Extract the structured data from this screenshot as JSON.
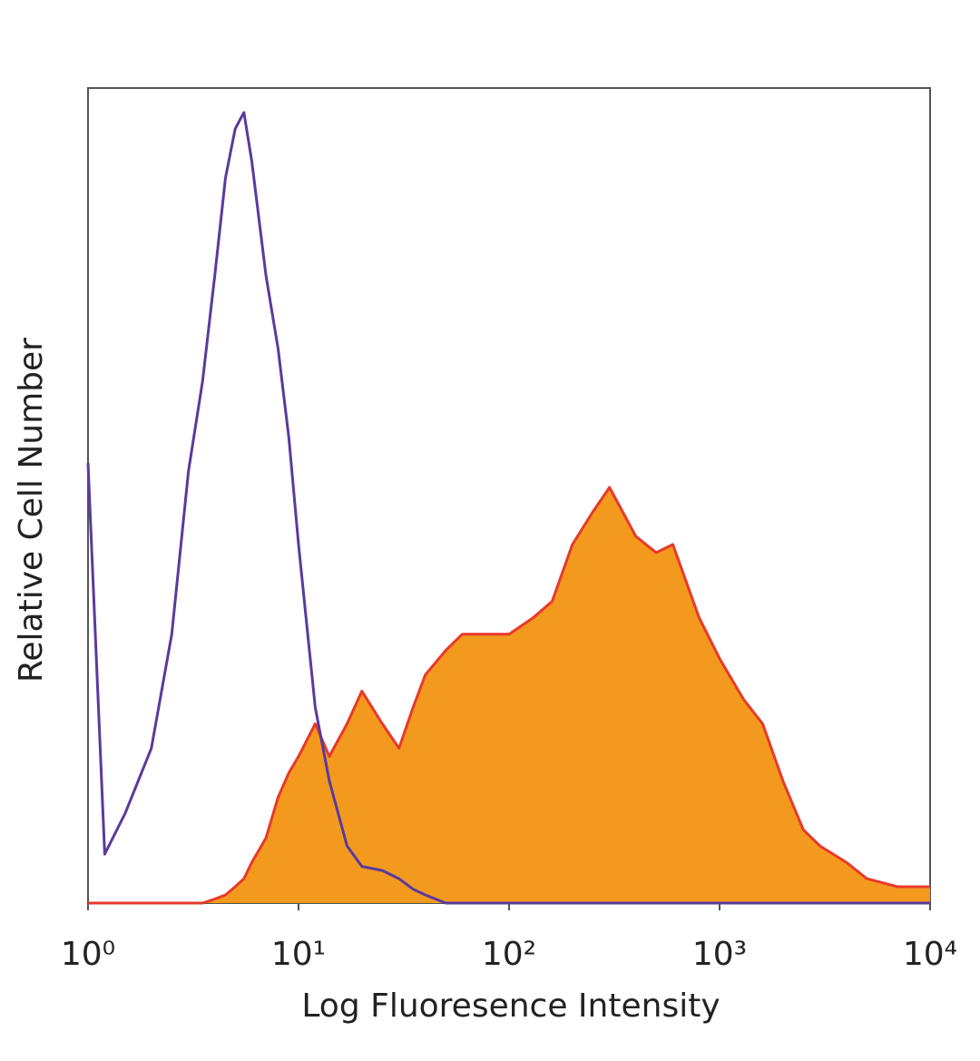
{
  "chart_data": {
    "type": "line",
    "xlabel": "Log Fluoresence Intensity",
    "ylabel": "Relative Cell Number",
    "xscale": "log",
    "xlim": [
      1,
      10000
    ],
    "ylim": [
      0,
      100
    ],
    "xticks": [
      {
        "value": 1,
        "label": "10⁰"
      },
      {
        "value": 10,
        "label": "10¹"
      },
      {
        "value": 100,
        "label": "10²"
      },
      {
        "value": 1000,
        "label": "10³"
      },
      {
        "value": 10000,
        "label": "10⁴"
      }
    ],
    "x": [
      1,
      1.2,
      1.5,
      2,
      2.5,
      3,
      3.5,
      4,
      4.5,
      5,
      5.5,
      6,
      7,
      8,
      9,
      10,
      12,
      14,
      17,
      20,
      25,
      30,
      35,
      40,
      50,
      60,
      80,
      100,
      130,
      160,
      200,
      250,
      300,
      400,
      500,
      600,
      800,
      1000,
      1300,
      1600,
      2000,
      2500,
      3000,
      4000,
      5000,
      7000,
      10000
    ],
    "series": [
      {
        "color": "#f39a1e",
        "line_color": "#e8392a",
        "fill": true,
        "values": [
          0,
          0,
          0,
          0,
          0,
          0,
          0,
          0.5,
          1,
          2,
          3,
          5,
          8,
          13,
          16,
          18,
          22,
          18,
          22,
          26,
          22,
          19,
          24,
          28,
          31,
          33,
          33,
          33,
          35,
          37,
          44,
          48,
          51,
          45,
          43,
          44,
          35,
          30,
          25,
          22,
          15,
          9,
          7,
          5,
          3,
          2,
          2
        ]
      },
      {
        "color": "#5a3a9e",
        "fill": false,
        "values": [
          54,
          6,
          11,
          19,
          33,
          53,
          64,
          77,
          89,
          95,
          97,
          91,
          77,
          68,
          57,
          44,
          24,
          15,
          7,
          4.5,
          4,
          3,
          1.7,
          1,
          0,
          0,
          0,
          0,
          0,
          0,
          0,
          0,
          0,
          0,
          0,
          0,
          0,
          0,
          0,
          0,
          0,
          0,
          0,
          0,
          0,
          0,
          0
        ]
      }
    ]
  }
}
